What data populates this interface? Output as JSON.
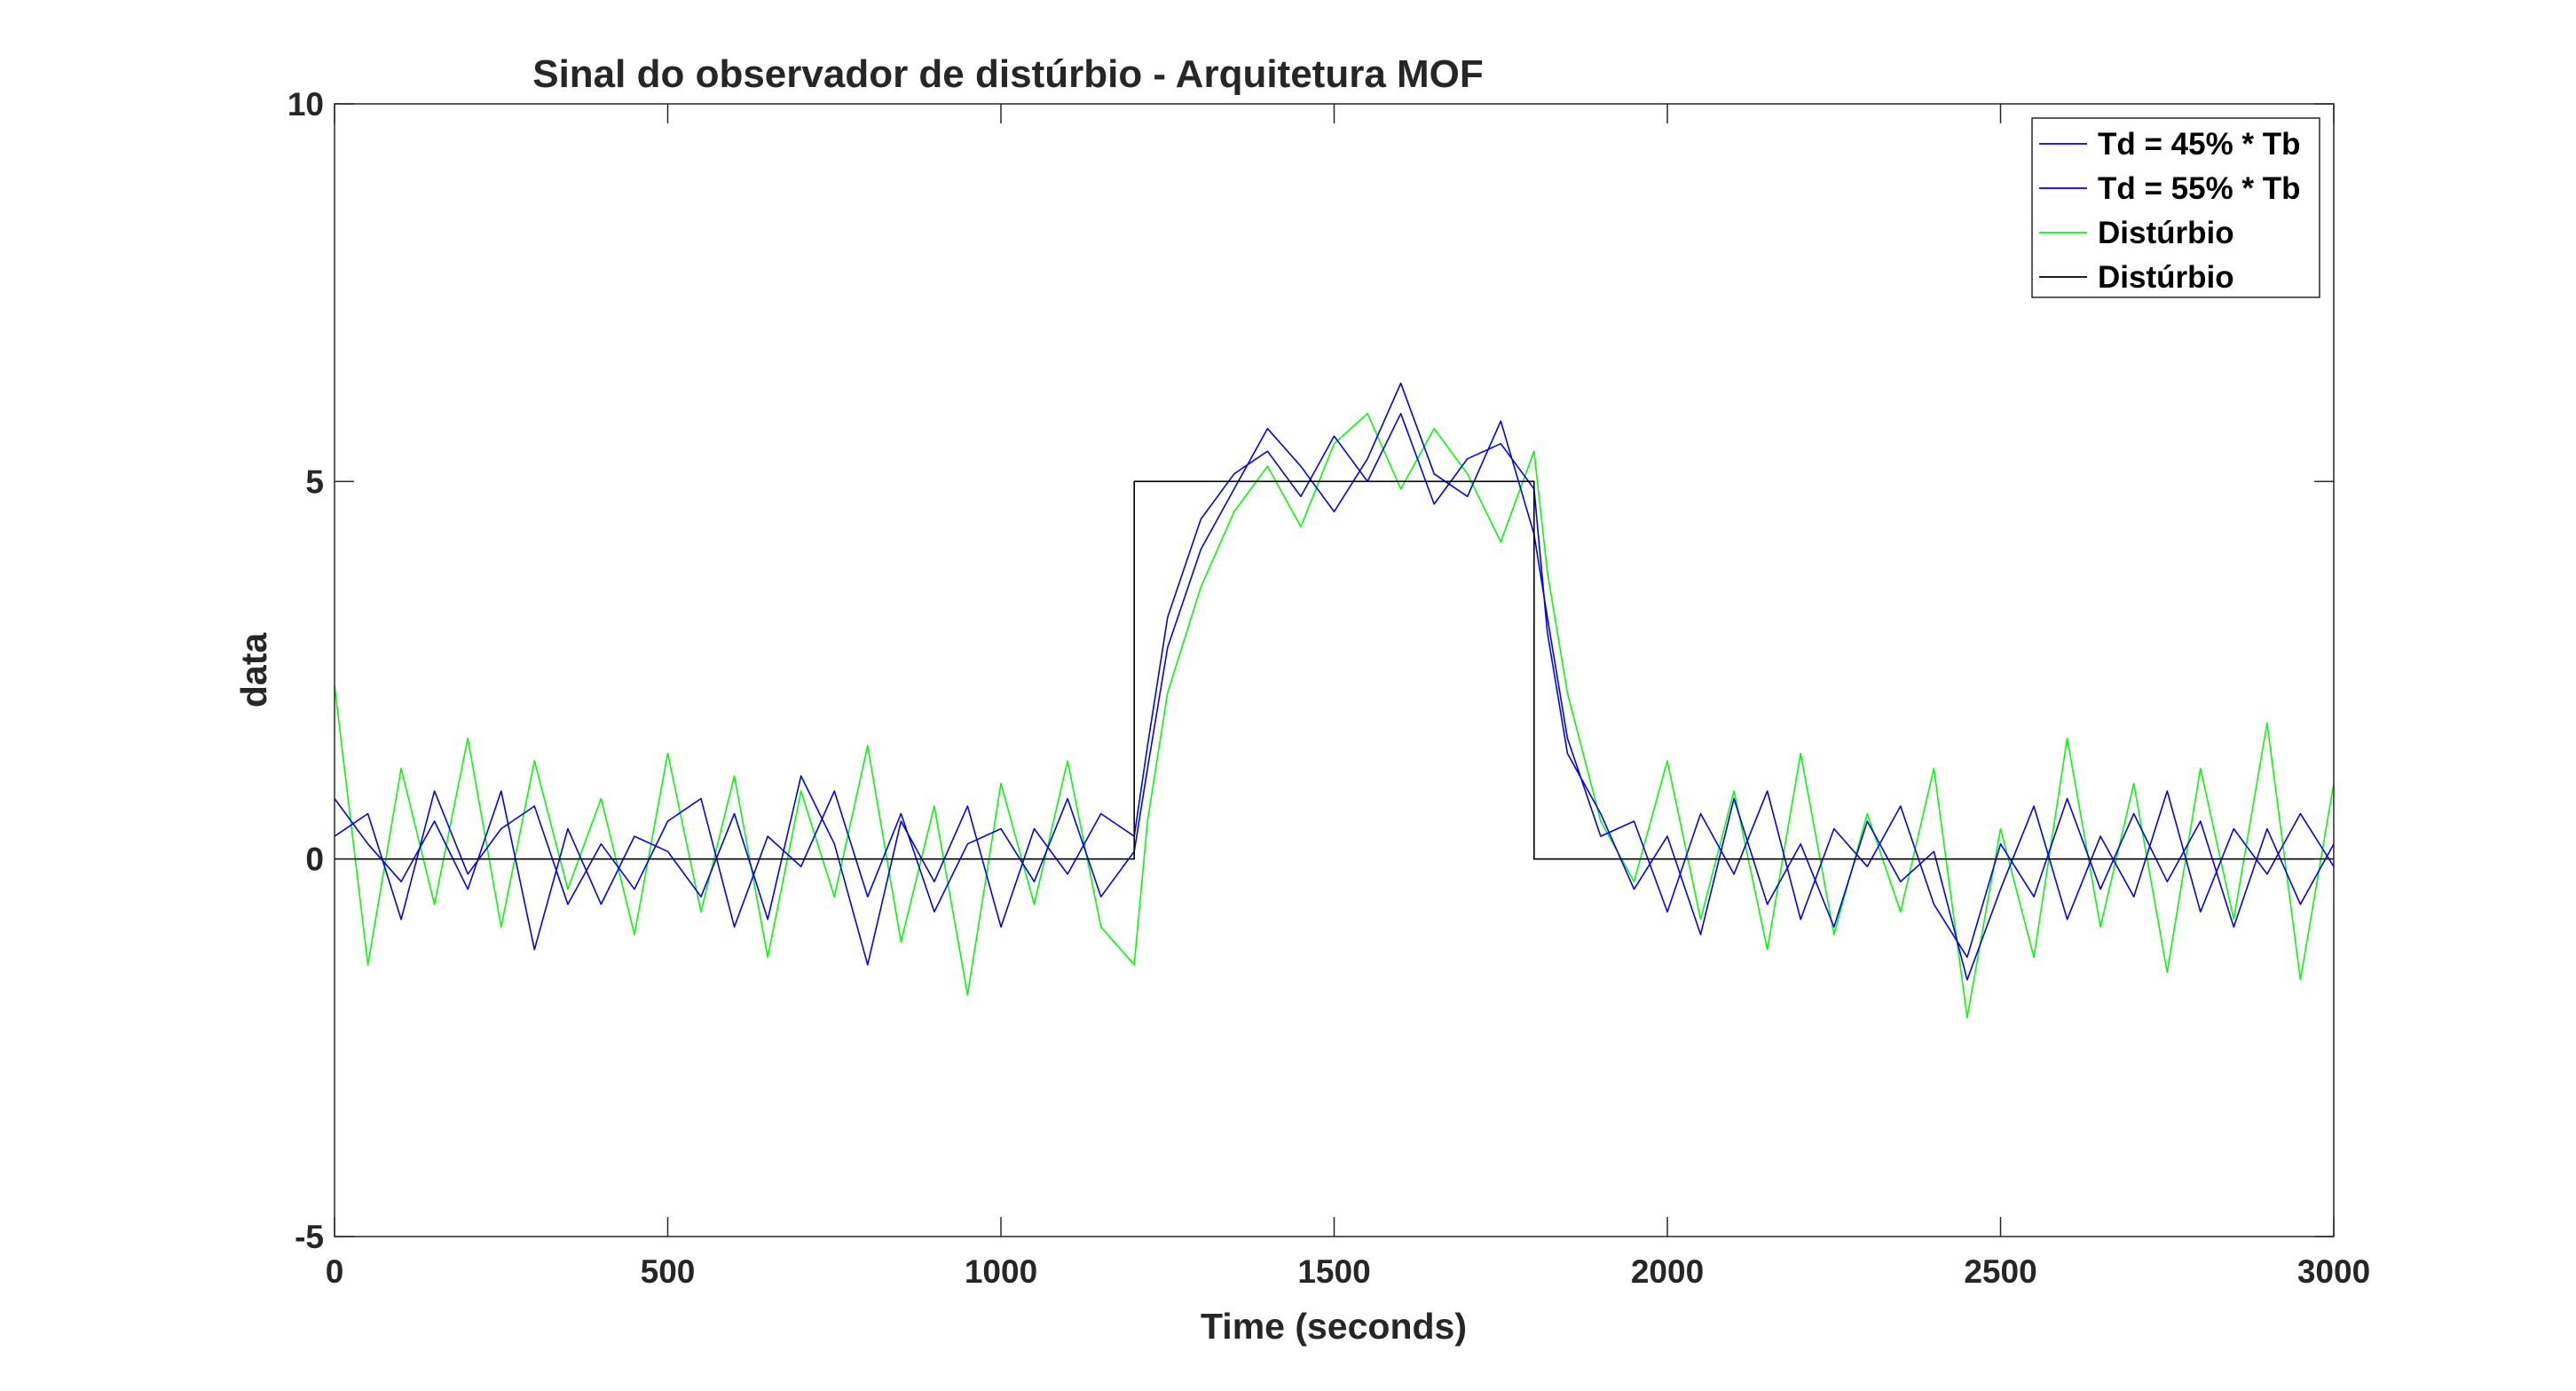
{
  "chart_data": {
    "type": "line",
    "title": "Sinal do observador de distúrbio - Arquitetura MOF",
    "xlabel": "Time (seconds)",
    "ylabel": "data",
    "xlim": [
      0,
      3000
    ],
    "ylim": [
      -5,
      10
    ],
    "xticks": [
      0,
      500,
      1000,
      1500,
      2000,
      2500,
      3000
    ],
    "yticks": [
      -5,
      0,
      5,
      10
    ],
    "xtick_labels": [
      "0",
      "500",
      "1000",
      "1500",
      "2000",
      "2500",
      "3000"
    ],
    "ytick_labels": [
      "-5",
      "0",
      "5",
      "10"
    ],
    "grid": false,
    "legend_position": "top-right",
    "series": [
      {
        "name": "Td = 45% * Tb",
        "color": "#0000ff",
        "x": [
          0,
          50,
          100,
          150,
          200,
          250,
          300,
          350,
          400,
          450,
          500,
          550,
          600,
          650,
          700,
          750,
          800,
          850,
          900,
          950,
          1000,
          1050,
          1100,
          1150,
          1200,
          1220,
          1250,
          1300,
          1350,
          1400,
          1450,
          1500,
          1550,
          1600,
          1650,
          1700,
          1750,
          1800,
          1820,
          1850,
          1900,
          1950,
          2000,
          2050,
          2100,
          2150,
          2200,
          2250,
          2300,
          2350,
          2400,
          2450,
          2500,
          2550,
          2600,
          2650,
          2700,
          2750,
          2800,
          2850,
          2900,
          2950,
          3000
        ],
        "y": [
          0.8,
          0.2,
          -0.3,
          0.5,
          -0.4,
          0.9,
          -1.2,
          0.4,
          -0.6,
          0.3,
          0.1,
          -0.5,
          0.6,
          -0.8,
          1.1,
          0.2,
          -1.4,
          0.5,
          -0.3,
          0.7,
          -0.9,
          0.4,
          -0.2,
          0.6,
          0.3,
          1.5,
          3.2,
          4.5,
          5.1,
          5.4,
          4.8,
          5.6,
          5.0,
          5.9,
          4.7,
          5.3,
          5.5,
          4.9,
          3.0,
          1.4,
          0.6,
          -0.4,
          0.3,
          -1.0,
          0.8,
          -0.6,
          0.2,
          -0.9,
          0.5,
          -0.3,
          0.1,
          -1.6,
          -0.4,
          0.7,
          -0.8,
          0.3,
          -0.5,
          0.9,
          -0.7,
          0.4,
          -0.2,
          0.6,
          -0.1
        ]
      },
      {
        "name": "Td = 55% * Tb",
        "color": "#0000ff",
        "x": [
          0,
          50,
          100,
          150,
          200,
          250,
          300,
          350,
          400,
          450,
          500,
          550,
          600,
          650,
          700,
          750,
          800,
          850,
          900,
          950,
          1000,
          1050,
          1100,
          1150,
          1200,
          1220,
          1250,
          1300,
          1350,
          1400,
          1450,
          1500,
          1550,
          1600,
          1650,
          1700,
          1750,
          1800,
          1820,
          1850,
          1900,
          1950,
          2000,
          2050,
          2100,
          2150,
          2200,
          2250,
          2300,
          2350,
          2400,
          2450,
          2500,
          2550,
          2600,
          2650,
          2700,
          2750,
          2800,
          2850,
          2900,
          2950,
          3000
        ],
        "y": [
          0.3,
          0.6,
          -0.8,
          0.9,
          -0.2,
          0.4,
          0.7,
          -0.6,
          0.2,
          -0.4,
          0.5,
          0.8,
          -0.9,
          0.3,
          -0.1,
          0.9,
          -0.5,
          0.6,
          -0.7,
          0.2,
          0.4,
          -0.3,
          0.8,
          -0.5,
          0.1,
          1.2,
          2.8,
          4.1,
          4.9,
          5.7,
          5.2,
          4.6,
          5.3,
          6.3,
          5.1,
          4.8,
          5.8,
          4.3,
          3.2,
          1.6,
          0.3,
          0.5,
          -0.7,
          0.6,
          -0.2,
          0.9,
          -0.8,
          0.4,
          -0.1,
          0.7,
          -0.6,
          -1.3,
          0.2,
          -0.5,
          0.8,
          -0.4,
          0.6,
          -0.3,
          0.5,
          -0.9,
          0.4,
          -0.6,
          0.2
        ]
      },
      {
        "name": "Distúrbio",
        "color": "#00ff00",
        "x": [
          0,
          50,
          100,
          150,
          200,
          250,
          300,
          350,
          400,
          450,
          500,
          550,
          600,
          650,
          700,
          750,
          800,
          850,
          900,
          950,
          1000,
          1050,
          1100,
          1150,
          1200,
          1220,
          1250,
          1300,
          1350,
          1400,
          1450,
          1500,
          1550,
          1600,
          1650,
          1700,
          1750,
          1800,
          1820,
          1850,
          1900,
          1950,
          2000,
          2050,
          2100,
          2150,
          2200,
          2250,
          2300,
          2350,
          2400,
          2450,
          2500,
          2550,
          2600,
          2650,
          2700,
          2750,
          2800,
          2850,
          2900,
          2950,
          3000
        ],
        "y": [
          2.3,
          -1.4,
          1.2,
          -0.6,
          1.6,
          -0.9,
          1.3,
          -0.4,
          0.8,
          -1.0,
          1.4,
          -0.7,
          1.1,
          -1.3,
          0.9,
          -0.5,
          1.5,
          -1.1,
          0.7,
          -1.8,
          1.0,
          -0.6,
          1.3,
          -0.9,
          -1.4,
          0.5,
          2.2,
          3.6,
          4.6,
          5.2,
          4.4,
          5.5,
          5.9,
          4.9,
          5.7,
          5.1,
          4.2,
          5.4,
          3.8,
          2.2,
          0.5,
          -0.3,
          1.3,
          -0.8,
          0.9,
          -1.2,
          1.4,
          -1.0,
          0.6,
          -0.7,
          1.2,
          -2.1,
          0.4,
          -1.3,
          1.6,
          -0.9,
          1.0,
          -1.5,
          1.2,
          -0.8,
          1.8,
          -1.6,
          1.0
        ]
      },
      {
        "name": "Distúrbio",
        "color": "#000000",
        "x": [
          0,
          1200,
          1200,
          1800,
          1800,
          3000
        ],
        "y": [
          0,
          0,
          5,
          5,
          0,
          0
        ]
      }
    ]
  }
}
